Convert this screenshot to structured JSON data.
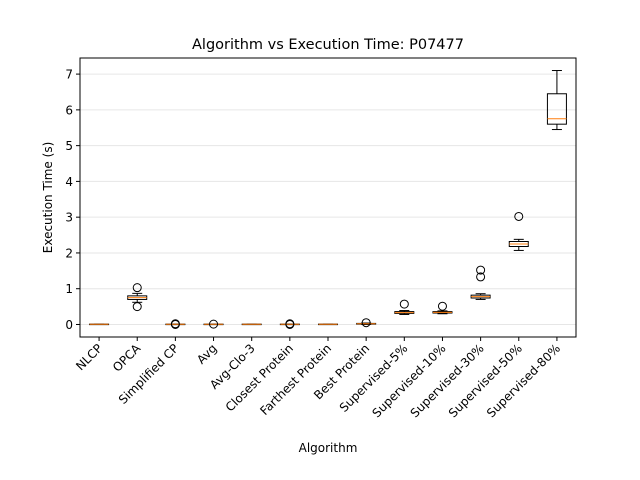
{
  "chart_data": {
    "type": "box",
    "title": "Algorithm vs Execution Time: P07477",
    "xlabel": "Algorithm",
    "ylabel": "Execution Time (s)",
    "ylim": [
      -0.35,
      7.45
    ],
    "yticks": [
      0,
      1,
      2,
      3,
      4,
      5,
      6,
      7
    ],
    "ytick_labels": [
      "0",
      "1",
      "2",
      "3",
      "4",
      "5",
      "6",
      "7"
    ],
    "grid": "horizontal",
    "colors": {
      "box": "#000000",
      "median": "#ff7f0e",
      "grid": "#e6e6e6"
    },
    "categories": [
      "NLCP",
      "OPCA",
      "Simplified CP",
      "Avg",
      "Avg-Clo-3",
      "Closest Protein",
      "Farthest Protein",
      "Best Protein",
      "Supervised-5%",
      "Supervised-10%",
      "Supervised-30%",
      "Supervised-50%",
      "Supervised-80%"
    ],
    "boxes": [
      {
        "whislo": 0.0,
        "q1": 0.0,
        "med": 0.005,
        "q3": 0.01,
        "whishi": 0.01,
        "fliers": []
      },
      {
        "whislo": 0.62,
        "q1": 0.7,
        "med": 0.75,
        "q3": 0.8,
        "whishi": 0.87,
        "fliers": [
          1.03,
          0.5
        ]
      },
      {
        "whislo": 0.0,
        "q1": 0.0,
        "med": 0.005,
        "q3": 0.01,
        "whishi": 0.01,
        "fliers": [
          0.0,
          0.02
        ]
      },
      {
        "whislo": 0.0,
        "q1": 0.0,
        "med": 0.005,
        "q3": 0.01,
        "whishi": 0.01,
        "fliers": [
          0.01
        ]
      },
      {
        "whislo": 0.0,
        "q1": 0.0,
        "med": 0.005,
        "q3": 0.01,
        "whishi": 0.01,
        "fliers": []
      },
      {
        "whislo": 0.0,
        "q1": 0.0,
        "med": 0.005,
        "q3": 0.01,
        "whishi": 0.01,
        "fliers": [
          0.0,
          0.02
        ]
      },
      {
        "whislo": 0.0,
        "q1": 0.0,
        "med": 0.005,
        "q3": 0.01,
        "whishi": 0.01,
        "fliers": []
      },
      {
        "whislo": 0.0,
        "q1": 0.01,
        "med": 0.02,
        "q3": 0.03,
        "whishi": 0.04,
        "fliers": [
          0.05
        ]
      },
      {
        "whislo": 0.28,
        "q1": 0.31,
        "med": 0.33,
        "q3": 0.36,
        "whishi": 0.39,
        "fliers": [
          0.57
        ]
      },
      {
        "whislo": 0.3,
        "q1": 0.32,
        "med": 0.34,
        "q3": 0.36,
        "whishi": 0.38,
        "fliers": [
          0.51
        ]
      },
      {
        "whislo": 0.7,
        "q1": 0.74,
        "med": 0.78,
        "q3": 0.82,
        "whishi": 0.86,
        "fliers": [
          1.33,
          1.52
        ]
      },
      {
        "whislo": 2.07,
        "q1": 2.18,
        "med": 2.25,
        "q3": 2.32,
        "whishi": 2.38,
        "fliers": [
          3.02
        ]
      },
      {
        "whislo": 5.45,
        "q1": 5.6,
        "med": 5.75,
        "q3": 6.45,
        "whishi": 7.1,
        "fliers": []
      }
    ]
  }
}
